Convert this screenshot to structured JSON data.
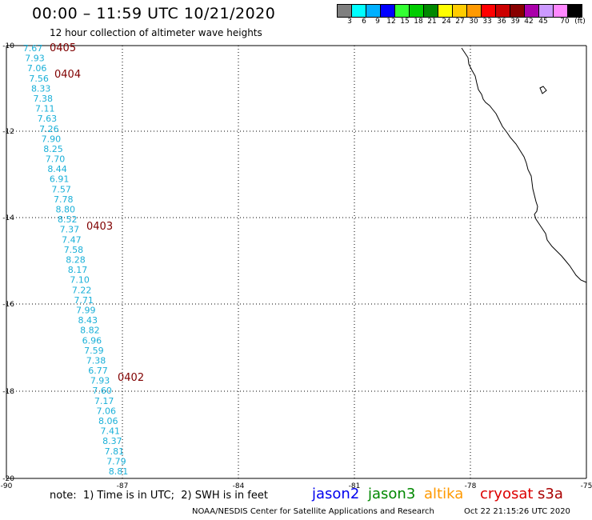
{
  "title": "00:00 – 11:59 UTC 10/21/2020",
  "subtitle": "12 hour collection of altimeter wave heights",
  "legend": {
    "colors": [
      "#7f7f7f",
      "#00ffff",
      "#00b0ff",
      "#0000ff",
      "#33ff33",
      "#00cc00",
      "#008800",
      "#ffff00",
      "#ffcc00",
      "#ff9900",
      "#ff0000",
      "#cc0000",
      "#880000",
      "#aa00aa",
      "#cc99ff",
      "#ff88ff",
      "#000000"
    ],
    "labels": [
      "3",
      "6",
      "9",
      "12",
      "15",
      "18",
      "21",
      "24",
      "27",
      "30",
      "33",
      "36",
      "39",
      "42",
      "45",
      "70",
      "(ft)"
    ]
  },
  "axes": {
    "lat_labels": [
      "-10",
      "-12",
      "-14",
      "-16",
      "-18",
      "-20"
    ],
    "lon_labels": [
      "-90",
      "-87",
      "-84",
      "-81",
      "-78",
      "-75"
    ]
  },
  "track": {
    "color": "#1ab0d8",
    "values": [
      "7.67",
      "7.93",
      "7.06",
      "7.56",
      "8.33",
      "7.38",
      "7.11",
      "7.63",
      "7.26",
      "7.90",
      "8.25",
      "7.70",
      "8.44",
      "6.91",
      "7.57",
      "7.78",
      "8.80",
      "8.52",
      "7.37",
      "7.47",
      "7.58",
      "8.28",
      "8.17",
      "7.10",
      "7.22",
      "7.71",
      "7.99",
      "8.43",
      "8.82",
      "6.96",
      "7.59",
      "7.38",
      "6.77",
      "7.93",
      "7.60",
      "7.17",
      "7.06",
      "8.06",
      "7.41",
      "8.37",
      "7.81",
      "7.79",
      "8.81"
    ]
  },
  "times": {
    "color": "#800000",
    "labels": [
      "0405",
      "0404",
      "0403",
      "0402"
    ]
  },
  "note": "note:  1) Time is in UTC;  2) SWH is in feet",
  "satellites": [
    {
      "name": "jason2",
      "color": "#0000ee"
    },
    {
      "name": "jason3",
      "color": "#008800"
    },
    {
      "name": "altika",
      "color": "#ff9900"
    },
    {
      "name": "cryosat",
      "color": "#dd0000"
    },
    {
      "name": "s3a",
      "color": "#aa0000"
    }
  ],
  "credit": "NOAA/NESDIS Center for Satellite Applications and Research",
  "timestamp": "Oct 22 21:15:26 UTC 2020"
}
